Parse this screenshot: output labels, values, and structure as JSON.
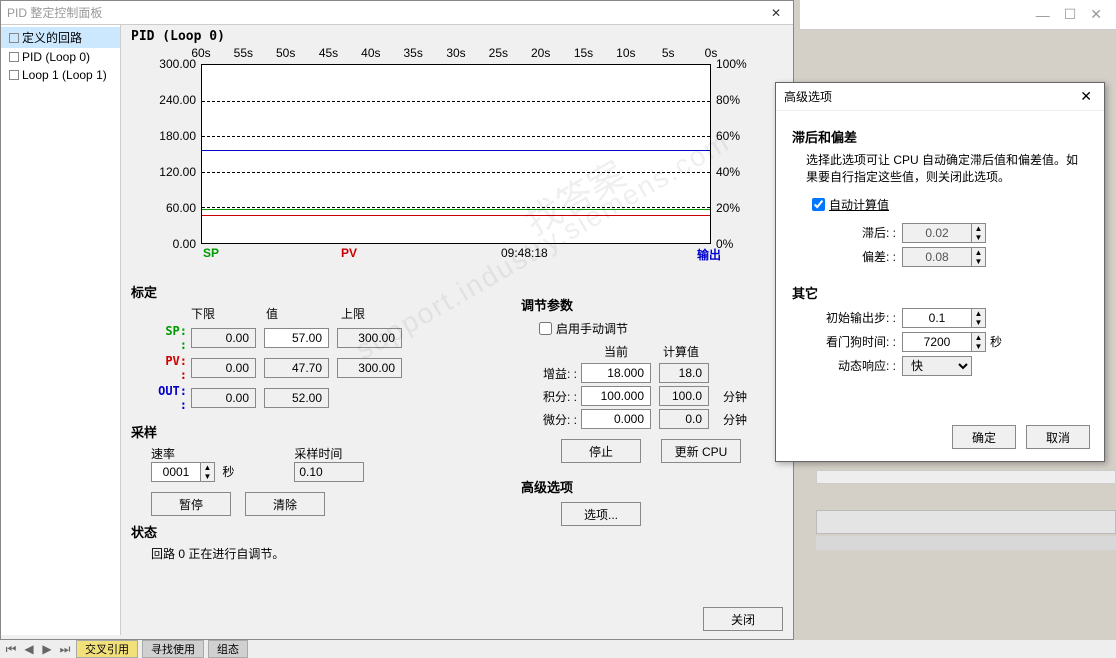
{
  "main": {
    "title": "PID 整定控制面板",
    "tree": {
      "items": [
        {
          "label": "定义的回路",
          "selected": true
        },
        {
          "label": "PID (Loop 0)",
          "selected": false
        },
        {
          "label": "Loop 1 (Loop 1)",
          "selected": false
        }
      ]
    },
    "chart": {
      "title": "PID (Loop 0)",
      "x_ticks": [
        "60s",
        "55s",
        "50s",
        "45s",
        "40s",
        "35s",
        "30s",
        "25s",
        "20s",
        "15s",
        "10s",
        "5s",
        "0s"
      ],
      "y_ticks": [
        "300.00",
        "240.00",
        "180.00",
        "120.00",
        "60.00",
        "0.00"
      ],
      "y2_ticks": [
        "100%",
        "80%",
        "60%",
        "40%",
        "20%",
        "0%"
      ],
      "legend_sp": "SP",
      "legend_pv": "PV",
      "timestamp": "09:48:18",
      "legend_out": "输出",
      "lines": {
        "sp_color": "#009900",
        "sp_value": 57,
        "pv_color": "#cc0000",
        "pv_value": 47.7,
        "out_color": "#0000cc",
        "out_value": 156
      },
      "y_max": 300
    },
    "calibration": {
      "title": "标定",
      "headers": {
        "lower": "下限",
        "value": "值",
        "upper": "上限"
      },
      "rows": {
        "sp": {
          "label": "SP: :",
          "lower": "0.00",
          "value": "57.00",
          "upper": "300.00"
        },
        "pv": {
          "label": "PV: :",
          "lower": "0.00",
          "value": "47.70",
          "upper": "300.00"
        },
        "out": {
          "label": "OUT: :",
          "lower": "0.00",
          "value": "52.00",
          "upper": ""
        }
      }
    },
    "tuning": {
      "title": "调节参数",
      "manual_checkbox": "启用手动调节",
      "manual_checked": false,
      "col_current": "当前",
      "col_calc": "计算值",
      "gain": {
        "label": "增益: :",
        "current": "18.000",
        "calc": "18.0"
      },
      "integ": {
        "label": "积分: :",
        "current": "100.000",
        "calc": "100.0",
        "unit": "分钟"
      },
      "deriv": {
        "label": "微分: :",
        "current": "0.000",
        "calc": "0.0",
        "unit": "分钟"
      },
      "stop_btn": "停止",
      "update_btn": "更新 CPU",
      "adv_title": "高级选项",
      "adv_btn": "选项..."
    },
    "sampling": {
      "title": "采样",
      "rate_label": "速率",
      "rate_value": "0001",
      "rate_unit": "秒",
      "time_label": "采样时间",
      "time_value": "0.10",
      "pause_btn": "暂停",
      "clear_btn": "清除"
    },
    "status": {
      "title": "状态",
      "text": "回路 0 正在进行自调节。"
    },
    "close_btn": "关闭"
  },
  "adv": {
    "title": "高级选项",
    "section1_title": "滞后和偏差",
    "section1_desc": "选择此选项可让 CPU 自动确定滞后值和偏差值。如果要自行指定这些值，则关闭此选项。",
    "auto_label": "自动计算值",
    "auto_checked": true,
    "lag_label": "滞后: :",
    "lag_value": "0.02",
    "dev_label": "偏差: :",
    "dev_value": "0.08",
    "section2_title": "其它",
    "init_step_label": "初始输出步: :",
    "init_step_value": "0.1",
    "watchdog_label": "看门狗时间: :",
    "watchdog_value": "7200",
    "watchdog_unit": "秒",
    "dynamic_label": "动态响应: :",
    "dynamic_value": "快",
    "ok_btn": "确定",
    "cancel_btn": "取消"
  },
  "watermark": "support.industry.siemens.com",
  "watermark2": "找答案"
}
